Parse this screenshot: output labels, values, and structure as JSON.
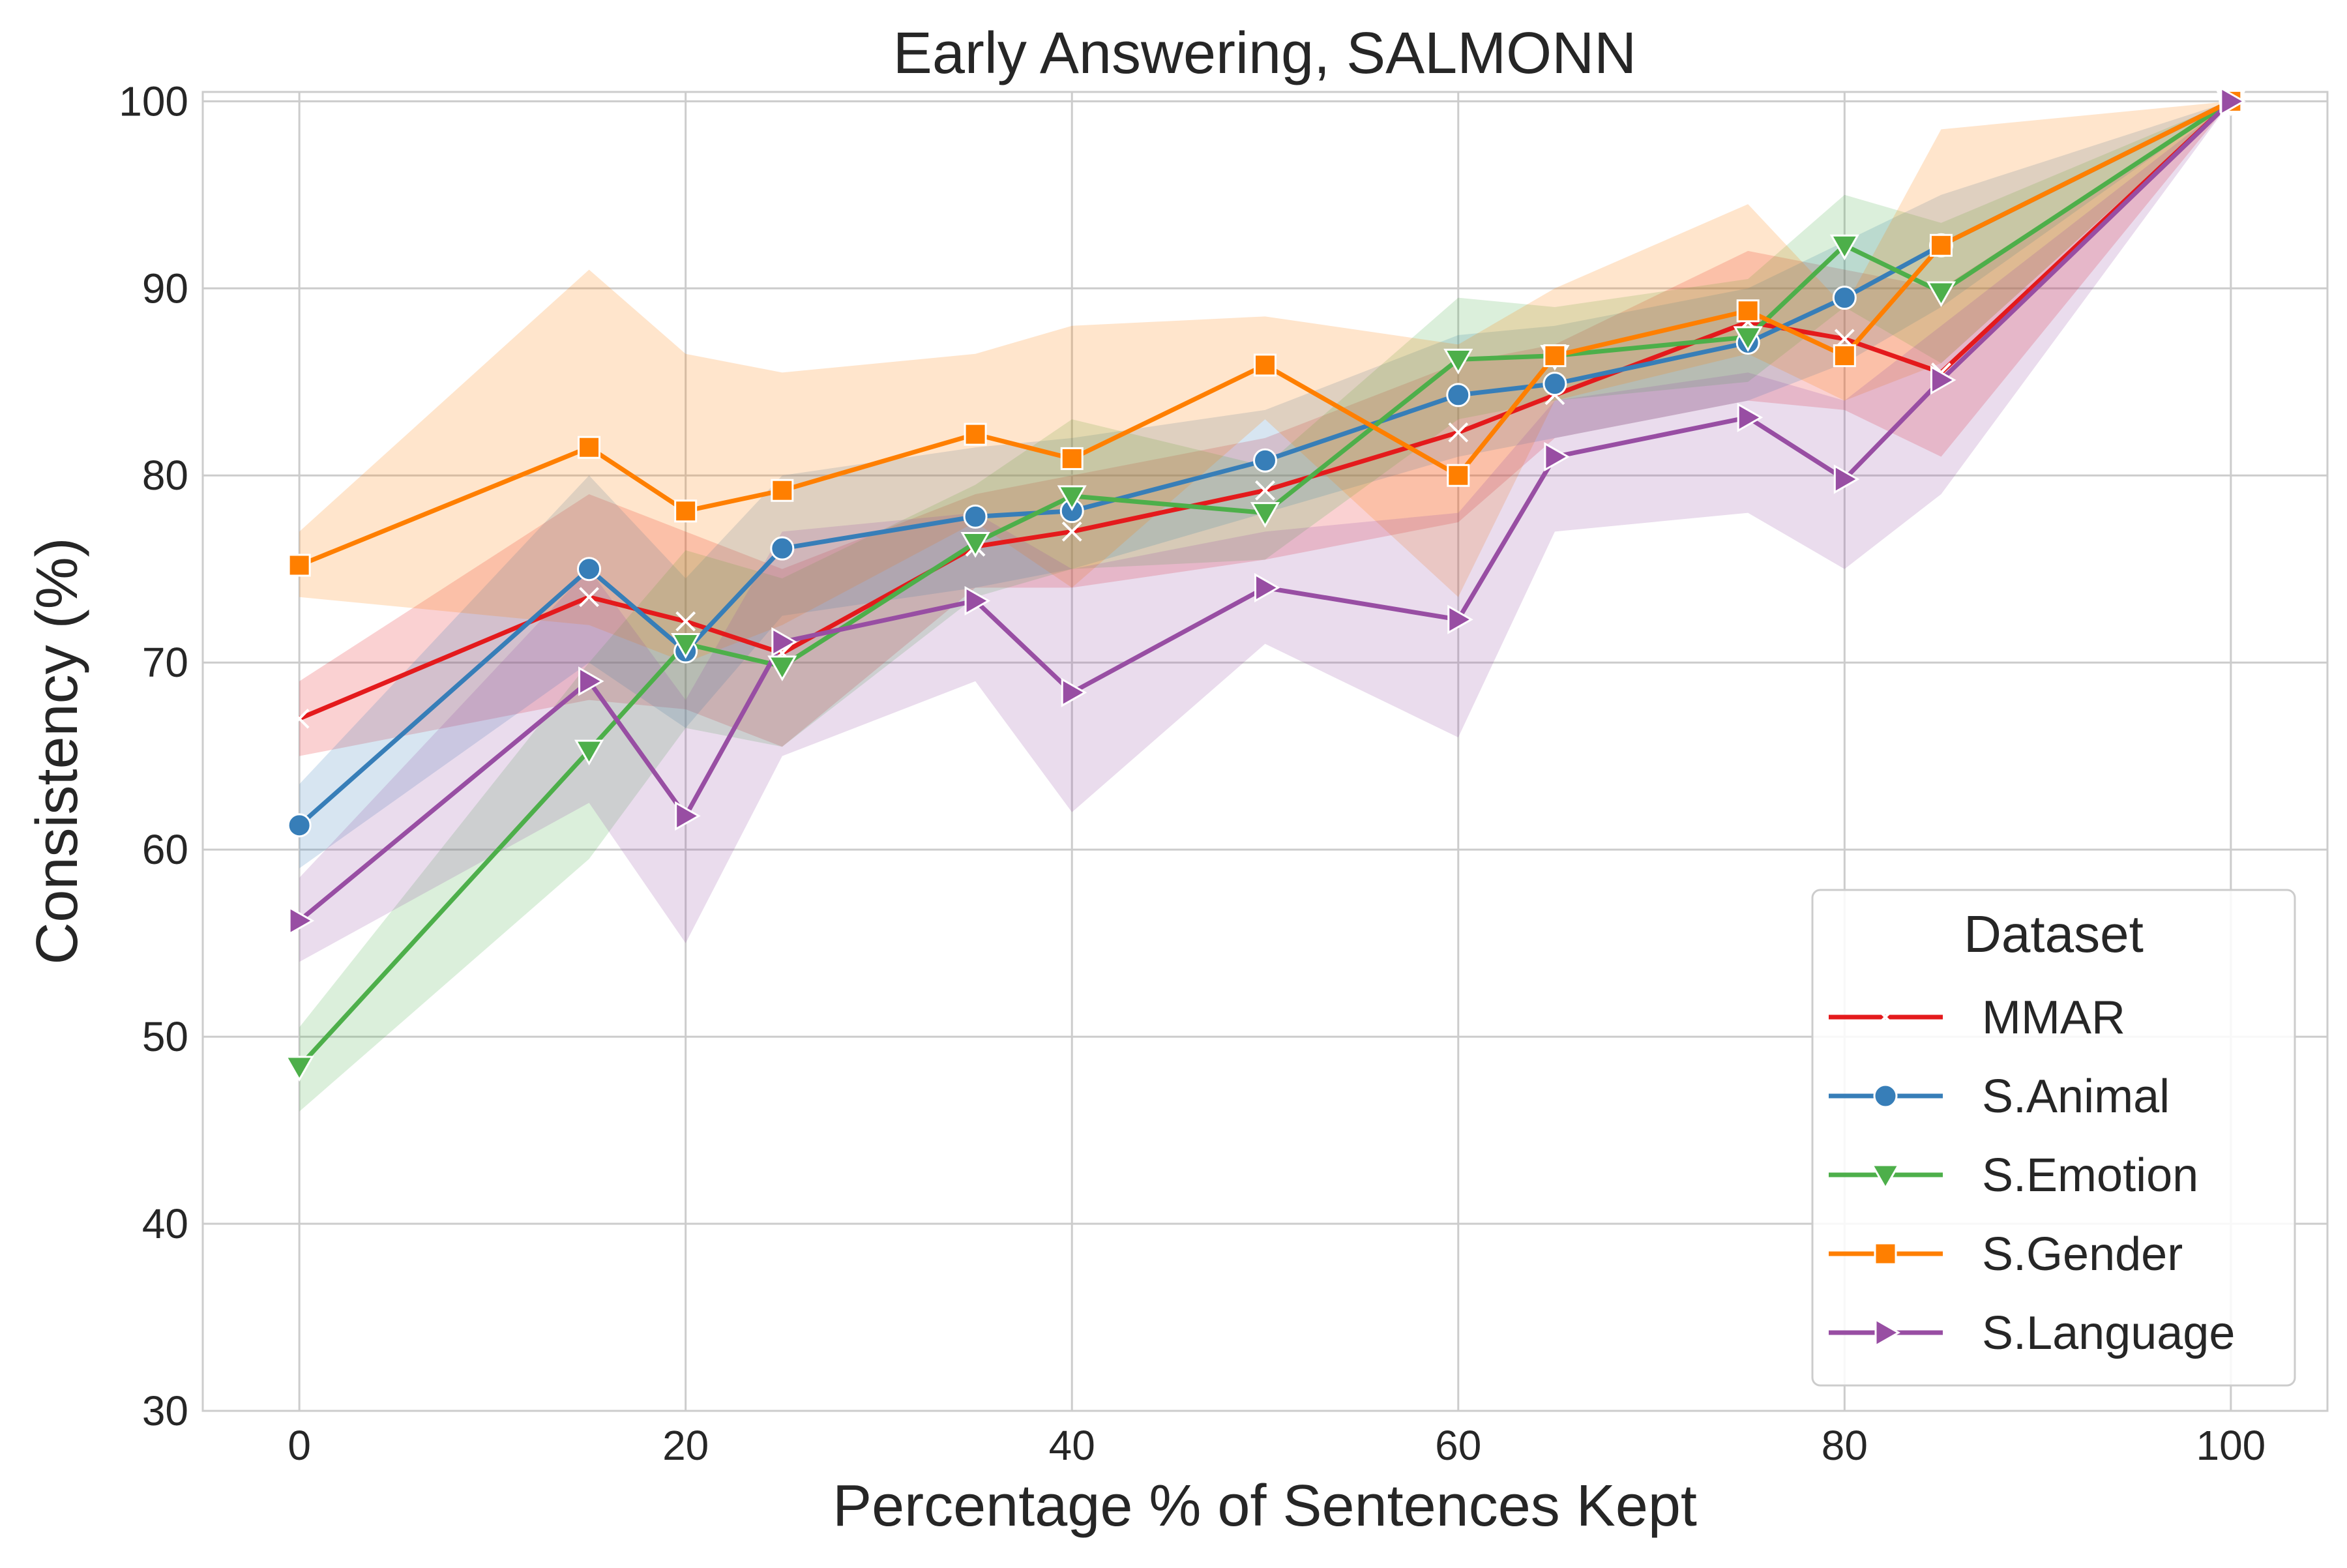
{
  "chart_data": {
    "type": "line",
    "title": "Early Answering, SALMONN",
    "xlabel": "Percentage % of Sentences Kept",
    "ylabel": "Consistency (%)",
    "xlim": [
      -5,
      105
    ],
    "ylim": [
      30,
      100.5
    ],
    "xticks": [
      0,
      20,
      40,
      60,
      80,
      100
    ],
    "yticks": [
      30,
      40,
      50,
      60,
      70,
      80,
      90,
      100
    ],
    "grid": true,
    "legend": {
      "title": "Dataset",
      "placement": "bottom-right"
    },
    "series": [
      {
        "name": "MMAR",
        "color": "#e41a1c",
        "marker": "x",
        "x": [
          0,
          15,
          20,
          25,
          35,
          40,
          50,
          60,
          65,
          75,
          80,
          85,
          100
        ],
        "y": [
          67.0,
          73.5,
          72.2,
          70.5,
          76.2,
          77.0,
          79.2,
          82.3,
          84.3,
          88.2,
          87.3,
          85.5,
          100
        ],
        "lo": [
          65.0,
          68.0,
          67.5,
          65.5,
          74.0,
          74.0,
          75.5,
          77.5,
          82.0,
          84.0,
          83.5,
          81.0,
          100
        ],
        "hi": [
          69.0,
          79.0,
          77.0,
          75.0,
          79.0,
          80.0,
          82.0,
          86.0,
          87.0,
          92.0,
          91.0,
          90.0,
          100
        ]
      },
      {
        "name": "S.Animal",
        "color": "#377eb8",
        "marker": "circle",
        "x": [
          0,
          15,
          20,
          25,
          35,
          40,
          50,
          60,
          65,
          75,
          80,
          85,
          100
        ],
        "y": [
          61.3,
          75.0,
          70.6,
          76.1,
          77.8,
          78.1,
          80.8,
          84.3,
          84.9,
          87.1,
          89.5,
          92.3,
          100
        ],
        "lo": [
          59.0,
          70.0,
          66.5,
          72.5,
          74.0,
          75.0,
          78.0,
          81.0,
          82.0,
          84.0,
          86.0,
          89.0,
          100
        ],
        "hi": [
          63.5,
          80.0,
          74.5,
          80.0,
          81.5,
          82.0,
          83.5,
          87.5,
          88.0,
          90.0,
          92.5,
          95.0,
          100
        ]
      },
      {
        "name": "S.Emotion",
        "color": "#4daf4a",
        "marker": "triangle-down",
        "x": [
          0,
          15,
          20,
          25,
          35,
          40,
          50,
          60,
          65,
          75,
          80,
          85,
          100
        ],
        "y": [
          48.4,
          65.3,
          71.0,
          69.8,
          76.4,
          78.9,
          78.0,
          86.2,
          86.4,
          87.4,
          92.3,
          89.8,
          100
        ],
        "lo": [
          46.0,
          59.5,
          66.5,
          65.5,
          73.5,
          75.0,
          75.5,
          83.0,
          84.0,
          85.0,
          89.0,
          86.0,
          100
        ],
        "hi": [
          50.5,
          70.0,
          76.0,
          74.5,
          79.5,
          83.0,
          80.5,
          89.5,
          89.0,
          90.5,
          95.0,
          93.5,
          100
        ]
      },
      {
        "name": "S.Gender",
        "color": "#ff7f00",
        "marker": "square",
        "x": [
          0,
          15,
          20,
          25,
          35,
          40,
          50,
          60,
          65,
          75,
          80,
          85,
          100
        ],
        "y": [
          75.2,
          81.5,
          78.1,
          79.2,
          82.2,
          80.9,
          85.9,
          80.0,
          86.4,
          88.8,
          86.4,
          92.3,
          100
        ],
        "lo": [
          73.5,
          72.0,
          70.0,
          72.0,
          77.5,
          74.0,
          83.0,
          73.5,
          84.0,
          86.5,
          84.0,
          86.0,
          100
        ],
        "hi": [
          77.0,
          91.0,
          86.5,
          85.5,
          86.5,
          88.0,
          88.5,
          87.0,
          90.0,
          94.5,
          89.0,
          98.5,
          100
        ]
      },
      {
        "name": "S.Language",
        "color": "#984ea3",
        "marker": "triangle-right",
        "x": [
          0,
          15,
          20,
          25,
          35,
          40,
          50,
          60,
          65,
          75,
          80,
          85,
          100
        ],
        "y": [
          56.2,
          69.0,
          61.8,
          71.1,
          73.3,
          68.4,
          74.0,
          72.3,
          81.0,
          83.1,
          79.8,
          85.1,
          100
        ],
        "lo": [
          54.0,
          62.5,
          55.0,
          65.0,
          69.0,
          62.0,
          71.0,
          66.0,
          77.0,
          78.0,
          75.0,
          79.0,
          100
        ],
        "hi": [
          58.5,
          75.0,
          68.0,
          77.0,
          78.0,
          75.0,
          77.0,
          78.0,
          84.0,
          85.5,
          84.0,
          88.0,
          100
        ]
      }
    ]
  }
}
